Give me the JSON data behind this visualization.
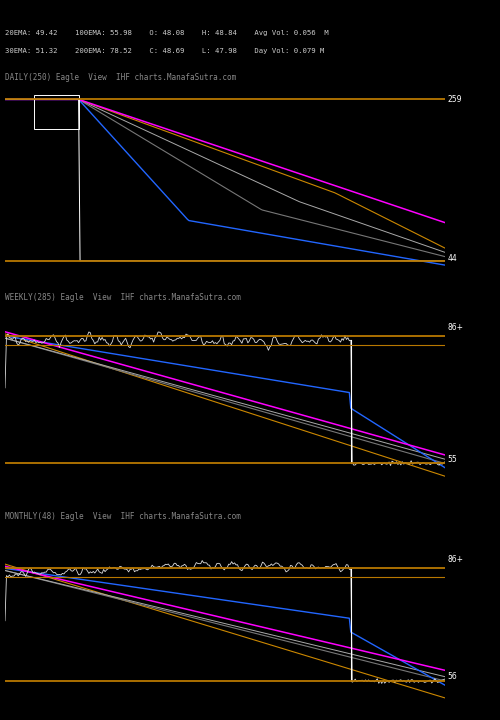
{
  "bg_color": "#000000",
  "panel_labels": [
    "DAILY(250) Eagle  View  IHF charts.ManafaSutra.com",
    "WEEKLY(285) Eagle  View  IHF charts.ManafaSutra.com",
    "MONTHLY(48) Eagle  View  IHF charts.ManafaSutra.com"
  ],
  "header_line1": "20EMA: 49.42    100EMA: 55.98    O: 48.08    H: 48.84    Avg Vol: 0.056  M",
  "header_line2": "30EMA: 51.32    200EMA: 78.52    C: 48.69    L: 47.98    Day Vol: 0.079 M",
  "orange_color": "#b87800",
  "right_labels": [
    [
      "259",
      "44"
    ],
    [
      "86+",
      "55"
    ],
    [
      "86+",
      "56"
    ]
  ],
  "label_color": "#888888",
  "text_color": "#cccccc"
}
